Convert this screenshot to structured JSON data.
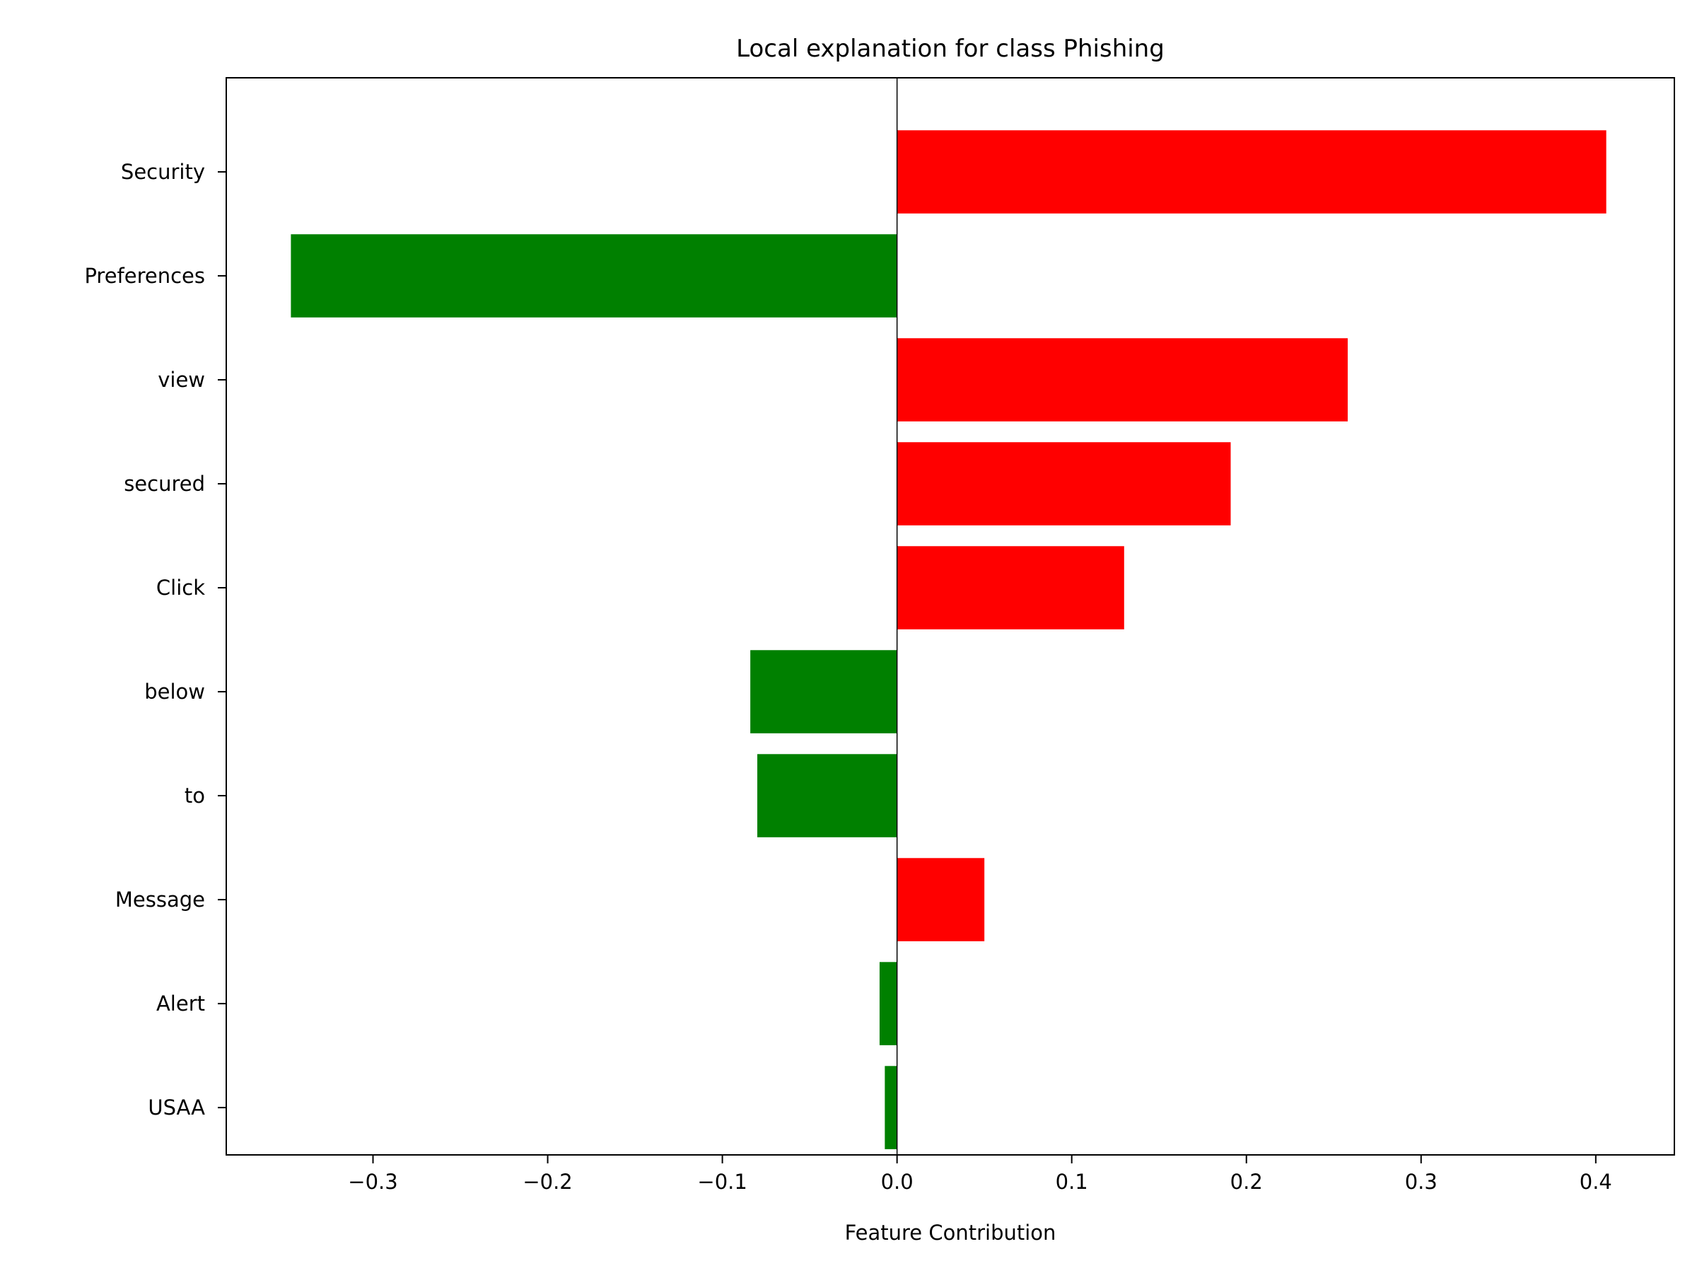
{
  "chart_data": {
    "type": "bar",
    "orientation": "horizontal",
    "title": "Local explanation for class Phishing",
    "xlabel": "Feature Contribution",
    "ylabel": "",
    "categories": [
      "Security",
      "Preferences",
      "view",
      "secured",
      "Click",
      "below",
      "to",
      "Message",
      "Alert",
      "USAA"
    ],
    "values": [
      0.406,
      -0.347,
      0.258,
      0.191,
      0.13,
      -0.084,
      -0.08,
      0.05,
      -0.01,
      -0.007
    ],
    "xlim": [
      -0.384,
      0.445
    ],
    "xticks": [
      -0.3,
      -0.2,
      -0.1,
      0.0,
      0.1,
      0.2,
      0.3,
      0.4
    ],
    "xtick_labels": [
      "−0.3",
      "−0.2",
      "−0.1",
      "0.0",
      "0.1",
      "0.2",
      "0.3",
      "0.4"
    ],
    "grid": false,
    "colors": {
      "positive": "#ff0000",
      "negative": "#008000"
    }
  }
}
